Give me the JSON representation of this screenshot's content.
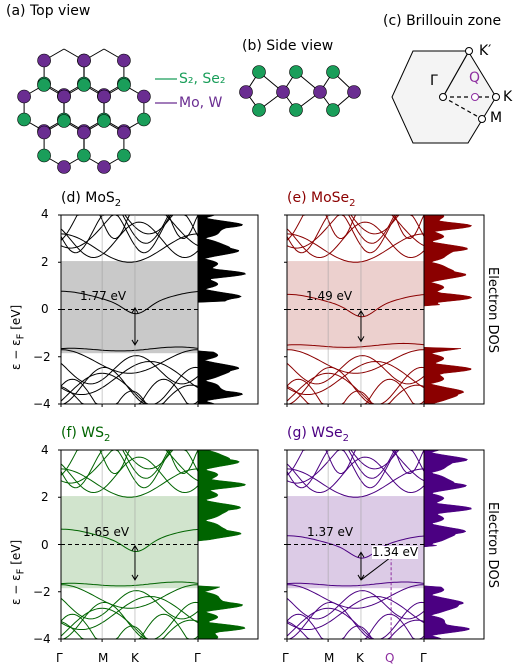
{
  "top_panels": {
    "a_title": "(a) Top view",
    "b_title": "(b) Side view",
    "c_title": "(c) Brillouin zone",
    "legend_chalcogen": "S₂, Se₂",
    "legend_metal": "Mo, W",
    "bz_points": {
      "gamma": "Γ",
      "q": "Q",
      "k": "K",
      "kprime": "K′",
      "m": "M"
    },
    "colors": {
      "chalcogen": "#1a9e5a",
      "metal": "#6a2d91"
    }
  },
  "band_panels": {
    "d_title": "(d) MoS",
    "e_title": "(e) MoSe",
    "f_title": "(f) WS",
    "g_title": "(g) WSe",
    "sub2": "2",
    "ylabel": "ε − ε",
    "ylabel_sub": "F",
    "ylabel_unit": "[eV]",
    "dos_label": "Electron DOS",
    "yticks": [
      "4",
      "2",
      "0",
      "−2",
      "−4"
    ],
    "xticks": [
      "Γ",
      "M",
      "K",
      "Q",
      "Γ"
    ]
  },
  "chart_data": [
    {
      "type": "line",
      "title": "(d) MoS2",
      "gap_label": "1.77 eV",
      "gap": 1.77,
      "ylim": [
        -4,
        4
      ],
      "ylabel": "ε − εF [eV]",
      "color": "#000000",
      "fill": "#c9c9c9",
      "x_ticks": [
        "Γ",
        "M",
        "K",
        "Γ"
      ]
    },
    {
      "type": "line",
      "title": "(e) MoSe2",
      "gap_label": "1.49 eV",
      "gap": 1.49,
      "ylim": [
        -4,
        4
      ],
      "color": "#8b0000",
      "fill": "#ecd0ce",
      "x_ticks": [
        "Γ",
        "M",
        "K",
        "Γ"
      ]
    },
    {
      "type": "line",
      "title": "(f) WS2",
      "gap_label": "1.65 eV",
      "gap": 1.65,
      "ylim": [
        -4,
        4
      ],
      "color": "#006400",
      "fill": "#d1e4cd",
      "x_ticks": [
        "Γ",
        "M",
        "K",
        "Γ"
      ]
    },
    {
      "type": "line",
      "title": "(g) WSe2",
      "gap_label": "1.37 eV",
      "gap": 1.37,
      "gap2_label": "1.34 eV",
      "gap2": 1.34,
      "ylim": [
        -4,
        4
      ],
      "color": "#4b0082",
      "fill": "#dccbe6",
      "x_ticks": [
        "Γ",
        "M",
        "K",
        "Q",
        "Γ"
      ]
    }
  ]
}
